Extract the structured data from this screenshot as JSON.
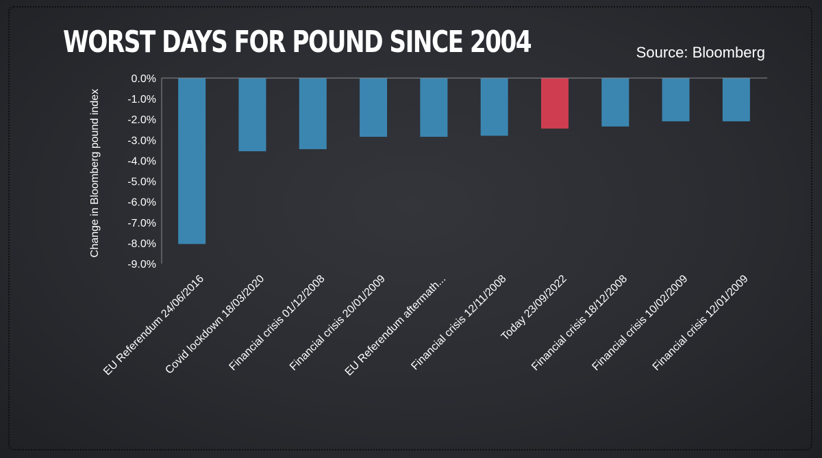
{
  "header": {
    "title": "WORST DAYS FOR POUND SINCE 2004",
    "source": "Source: Bloomberg"
  },
  "colors": {
    "bar": "#3b86b1",
    "highlight": "#cf3e50",
    "axis": "#8a8c90"
  },
  "chart_data": {
    "type": "bar",
    "title": "WORST DAYS FOR POUND SINCE 2004",
    "ylabel": "Change in Bloomberg pound index",
    "xlabel": "",
    "ylim": [
      -9.0,
      0.0
    ],
    "yticks": [
      "0.0%",
      "-1.0%",
      "-2.0%",
      "-3.0%",
      "-4.0%",
      "-5.0%",
      "-6.0%",
      "-7.0%",
      "-8.0%",
      "-9.0%"
    ],
    "categories": [
      "EU Referendum 24/06/2016",
      "Covid lockdown 18/03/2020",
      "Financial crisis 01/12/2008",
      "Financial crisis 20/01/2009",
      "EU Referendum aftermath...",
      "Financial crisis 12/11/2008",
      "Today 23/09/2022",
      "Financial crisis 18/12/2008",
      "Financial crisis 10/02/2009",
      "Financial crisis 12/01/2009"
    ],
    "values": [
      -8.05,
      -3.55,
      -3.45,
      -2.85,
      -2.85,
      -2.8,
      -2.45,
      -2.35,
      -2.1,
      -2.1
    ],
    "highlight_index": 6,
    "grid": false
  }
}
